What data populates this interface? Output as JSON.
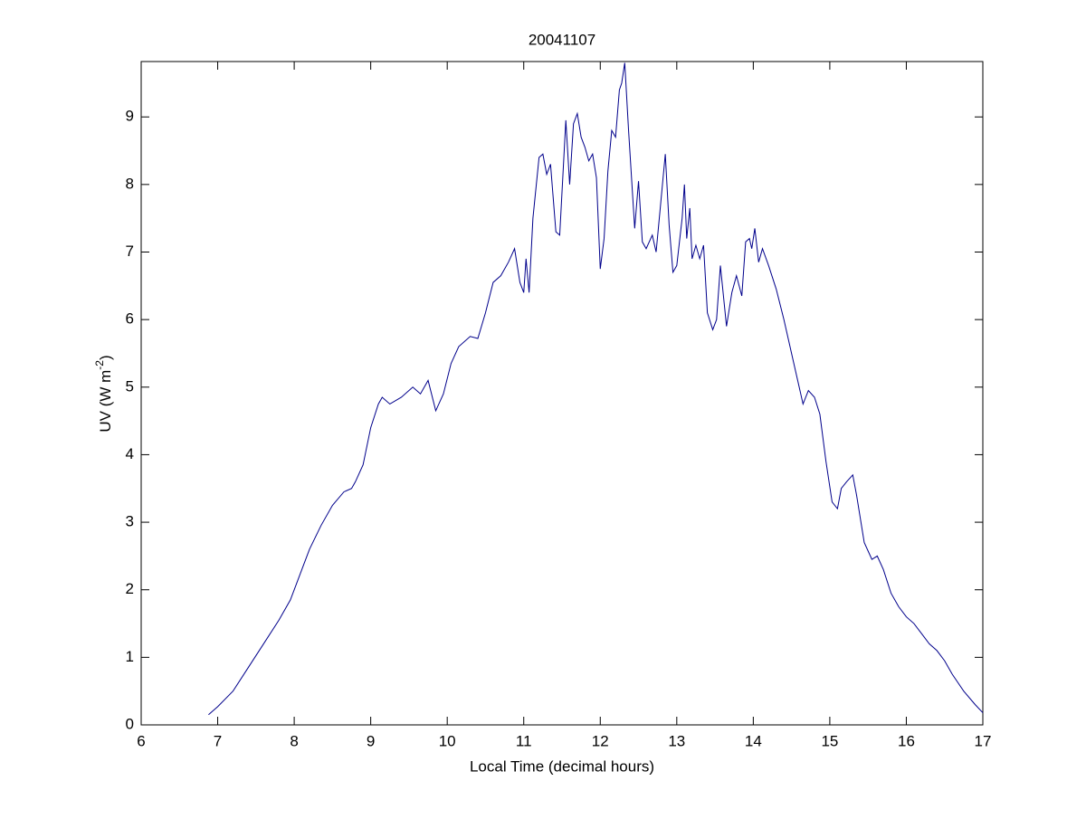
{
  "chart_data": {
    "type": "line",
    "title": "20041107",
    "xlabel": "Local Time (decimal hours)",
    "ylabel": {
      "text": "UV (W m",
      "superscript": "-2",
      "end": ")"
    },
    "x": [
      6.88,
      7.0,
      7.2,
      7.4,
      7.6,
      7.8,
      7.95,
      8.1,
      8.2,
      8.35,
      8.5,
      8.65,
      8.75,
      8.8,
      8.9,
      9.0,
      9.1,
      9.15,
      9.25,
      9.4,
      9.55,
      9.65,
      9.75,
      9.85,
      9.95,
      10.05,
      10.15,
      10.3,
      10.4,
      10.5,
      10.6,
      10.7,
      10.8,
      10.88,
      10.95,
      11.0,
      11.03,
      11.07,
      11.12,
      11.2,
      11.25,
      11.3,
      11.35,
      11.42,
      11.47,
      11.55,
      11.6,
      11.65,
      11.7,
      11.75,
      11.8,
      11.85,
      11.9,
      11.95,
      12.0,
      12.05,
      12.1,
      12.15,
      12.2,
      12.25,
      12.28,
      12.32,
      12.37,
      12.45,
      12.5,
      12.55,
      12.6,
      12.68,
      12.73,
      12.78,
      12.85,
      12.9,
      12.95,
      13.0,
      13.07,
      13.1,
      13.13,
      13.17,
      13.2,
      13.25,
      13.3,
      13.35,
      13.4,
      13.47,
      13.52,
      13.57,
      13.65,
      13.72,
      13.78,
      13.85,
      13.9,
      13.95,
      13.98,
      14.02,
      14.07,
      14.12,
      14.2,
      14.3,
      14.4,
      14.5,
      14.6,
      14.65,
      14.72,
      14.8,
      14.87,
      14.95,
      15.03,
      15.1,
      15.15,
      15.22,
      15.3,
      15.35,
      15.45,
      15.55,
      15.62,
      15.7,
      15.8,
      15.9,
      16.0,
      16.1,
      16.2,
      16.3,
      16.4,
      16.5,
      16.6,
      16.75,
      16.9,
      17.0
    ],
    "series": [
      {
        "color": "#00008b",
        "values": [
          0.15,
          0.27,
          0.5,
          0.85,
          1.2,
          1.55,
          1.85,
          2.3,
          2.6,
          2.95,
          3.25,
          3.45,
          3.5,
          3.6,
          3.85,
          4.4,
          4.75,
          4.85,
          4.75,
          4.85,
          5.0,
          4.9,
          5.1,
          4.65,
          4.9,
          5.35,
          5.6,
          5.75,
          5.72,
          6.1,
          6.55,
          6.65,
          6.85,
          7.05,
          6.55,
          6.4,
          6.9,
          6.4,
          7.5,
          8.4,
          8.45,
          8.15,
          8.3,
          7.3,
          7.25,
          8.95,
          8.0,
          8.9,
          9.05,
          8.7,
          8.55,
          8.35,
          8.45,
          8.1,
          6.75,
          7.2,
          8.2,
          8.8,
          8.7,
          9.4,
          9.5,
          9.8,
          8.8,
          7.35,
          8.05,
          7.15,
          7.05,
          7.25,
          7.0,
          7.6,
          8.45,
          7.4,
          6.7,
          6.8,
          7.5,
          8.0,
          7.2,
          7.65,
          6.9,
          7.1,
          6.9,
          7.1,
          6.1,
          5.85,
          6.0,
          6.8,
          5.9,
          6.4,
          6.65,
          6.35,
          7.15,
          7.2,
          7.05,
          7.35,
          6.85,
          7.05,
          6.8,
          6.45,
          6.0,
          5.5,
          5.0,
          4.75,
          4.95,
          4.85,
          4.6,
          3.9,
          3.3,
          3.2,
          3.5,
          3.6,
          3.7,
          3.4,
          2.7,
          2.45,
          2.5,
          2.3,
          1.95,
          1.75,
          1.6,
          1.5,
          1.35,
          1.2,
          1.1,
          0.95,
          0.75,
          0.5,
          0.3,
          0.18
        ]
      }
    ],
    "xlim": [
      6,
      17
    ],
    "xticks": [
      6,
      7,
      8,
      9,
      10,
      11,
      12,
      13,
      14,
      15,
      16,
      17
    ],
    "ylim": [
      0,
      9.82
    ],
    "yticks": [
      0,
      1,
      2,
      3,
      4,
      5,
      6,
      7,
      8,
      9
    ]
  }
}
